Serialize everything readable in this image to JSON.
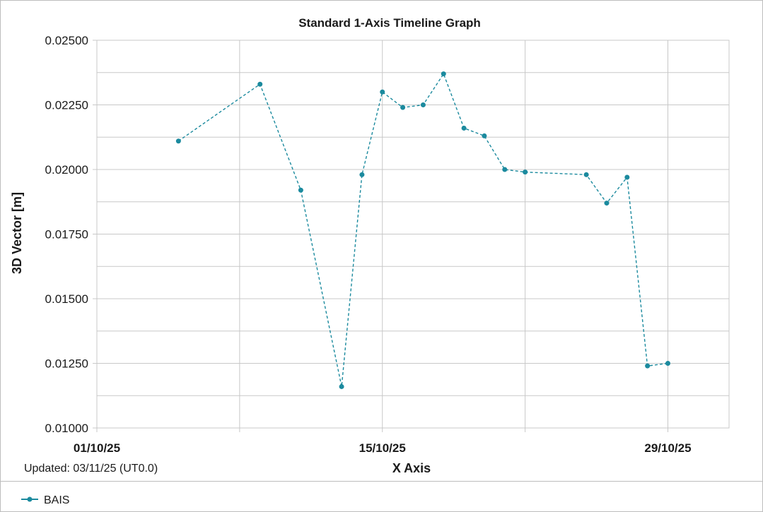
{
  "chart_data": {
    "type": "line",
    "title": "Standard 1-Axis Timeline Graph",
    "xlabel": "X Axis",
    "ylabel": "3D Vector [m]",
    "updated_text": "Updated: 03/11/25 (UT0.0)",
    "xlim": [
      "2025-10-01",
      "2025-11-01"
    ],
    "ylim": [
      0.01,
      0.025
    ],
    "yticks": [
      0.01,
      0.0125,
      0.015,
      0.0175,
      0.02,
      0.0225,
      0.025
    ],
    "ytick_labels": [
      "0.01000",
      "0.01250",
      "0.01500",
      "0.01750",
      "0.02000",
      "0.02250",
      "0.02500"
    ],
    "xtick_labels": [
      {
        "date": "2025-10-01",
        "label": "01/10/25"
      },
      {
        "date": "2025-10-15",
        "label": "15/10/25"
      },
      {
        "date": "2025-10-29",
        "label": "29/10/25"
      }
    ],
    "x_gridlines": [
      "2025-10-01",
      "2025-10-08",
      "2025-10-15",
      "2025-10-22",
      "2025-10-29"
    ],
    "grid": true,
    "legend_position": "bottom-left",
    "color": "#1b8a9e",
    "line_style": "dashed",
    "series": [
      {
        "name": "BAIS",
        "x": [
          "2025-10-05",
          "2025-10-09",
          "2025-10-11",
          "2025-10-13",
          "2025-10-14",
          "2025-10-15",
          "2025-10-16",
          "2025-10-17",
          "2025-10-18",
          "2025-10-19",
          "2025-10-20",
          "2025-10-21",
          "2025-10-22",
          "2025-10-25",
          "2025-10-26",
          "2025-10-27",
          "2025-10-28",
          "2025-10-29"
        ],
        "y": [
          0.0211,
          0.0233,
          0.0192,
          0.0116,
          0.0198,
          0.023,
          0.0224,
          0.0225,
          0.0237,
          0.0216,
          0.0213,
          0.02,
          0.0199,
          0.0198,
          0.0187,
          0.0197,
          0.0124,
          0.0125
        ]
      }
    ]
  }
}
